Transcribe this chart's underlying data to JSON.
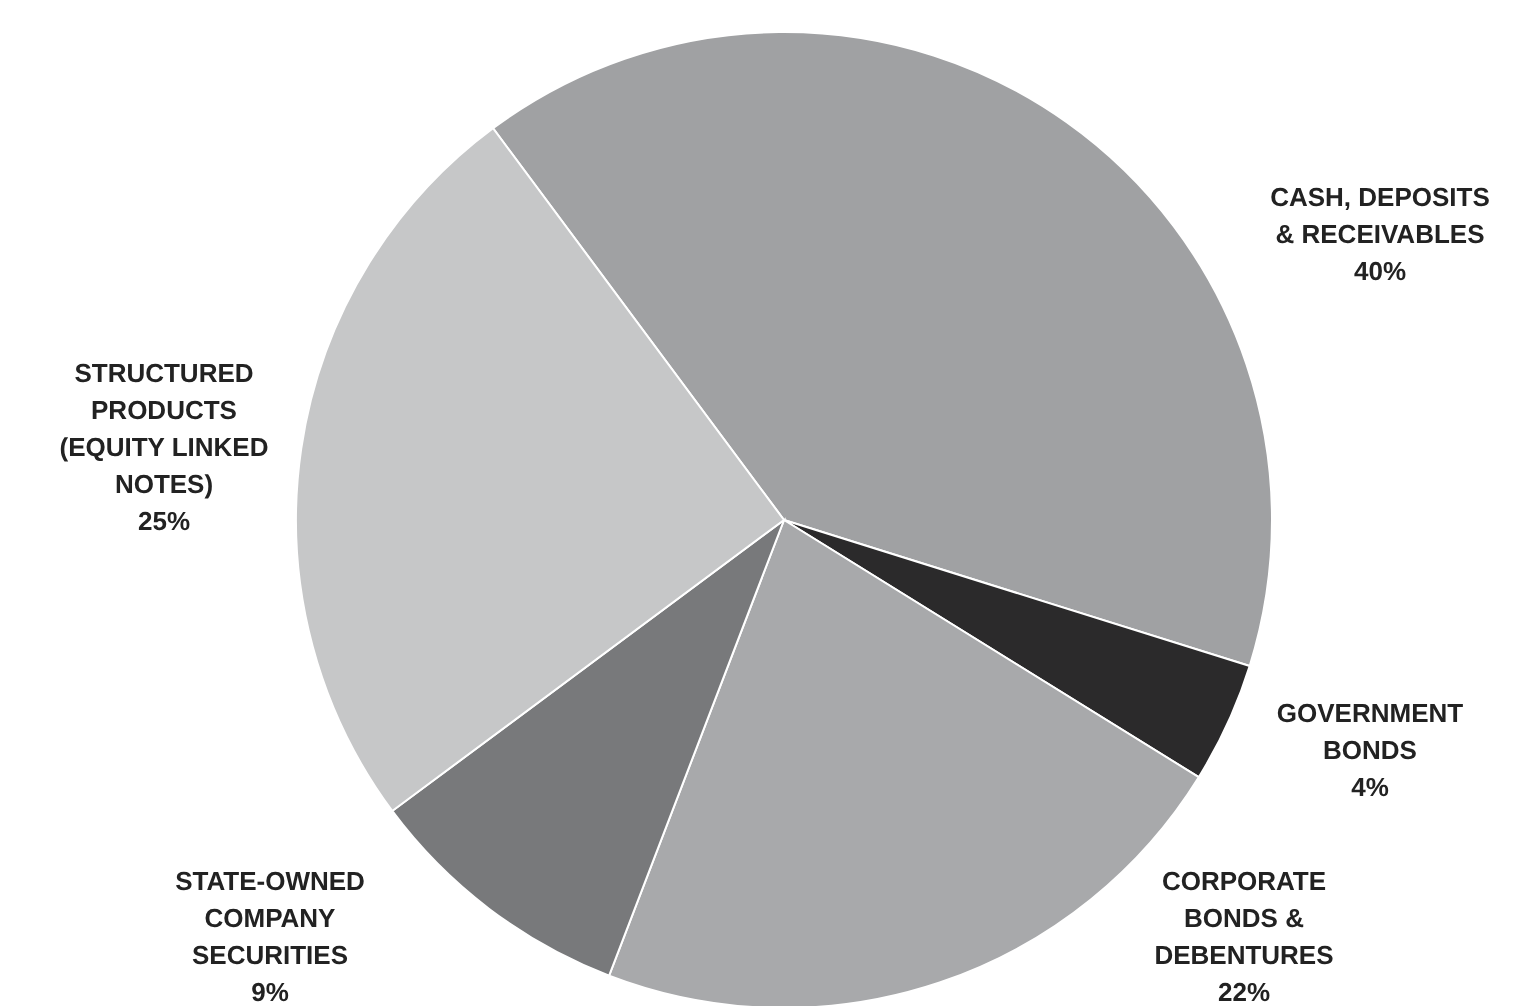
{
  "chart_data": {
    "type": "pie",
    "categories": [
      "CASH, DEPOSITS & RECEIVABLES",
      "GOVERNMENT BONDS",
      "CORPORATE BONDS & DEBENTURES",
      "STATE-OWNED COMPANY SECURITIES",
      "STRUCTURED PRODUCTS (EQUITY LINKED NOTES)"
    ],
    "values": [
      40,
      4,
      22,
      9,
      25
    ],
    "value_labels": [
      "40%",
      "4%",
      "22%",
      "9%",
      "25%"
    ],
    "colors": [
      "#a0a1a3",
      "#2b2a2b",
      "#a8a9ab",
      "#78797b",
      "#c6c7c8"
    ]
  }
}
